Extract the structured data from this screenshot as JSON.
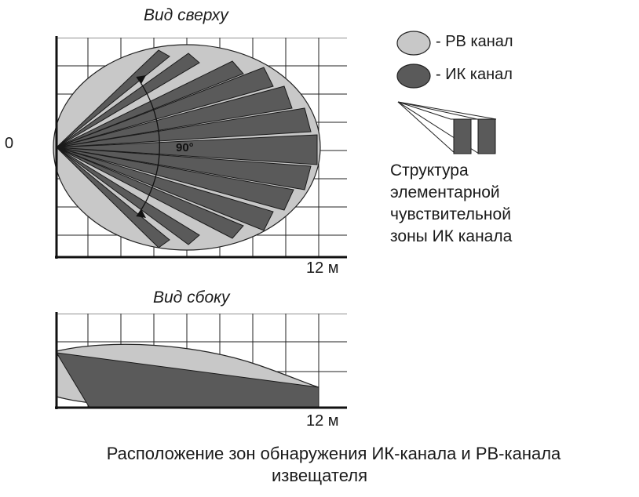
{
  "top_view": {
    "title": "Вид сверху",
    "origin_label": "0",
    "distance_label": "12 м",
    "angle_label": "90°"
  },
  "side_view": {
    "title": "Вид сбоку",
    "distance_label": "12 м"
  },
  "legend": {
    "rv_label": "- РВ канал",
    "ik_label": "- ИК канал",
    "rv_color": "#c8c8c8",
    "ik_color": "#5a5a5a"
  },
  "structure_caption": [
    "Структура",
    "элементарной",
    "чувствительной",
    "зоны ИК канала"
  ],
  "caption": [
    "Расположение зон обнаружения ИК-канала и РВ-канала",
    "извещателя"
  ]
}
